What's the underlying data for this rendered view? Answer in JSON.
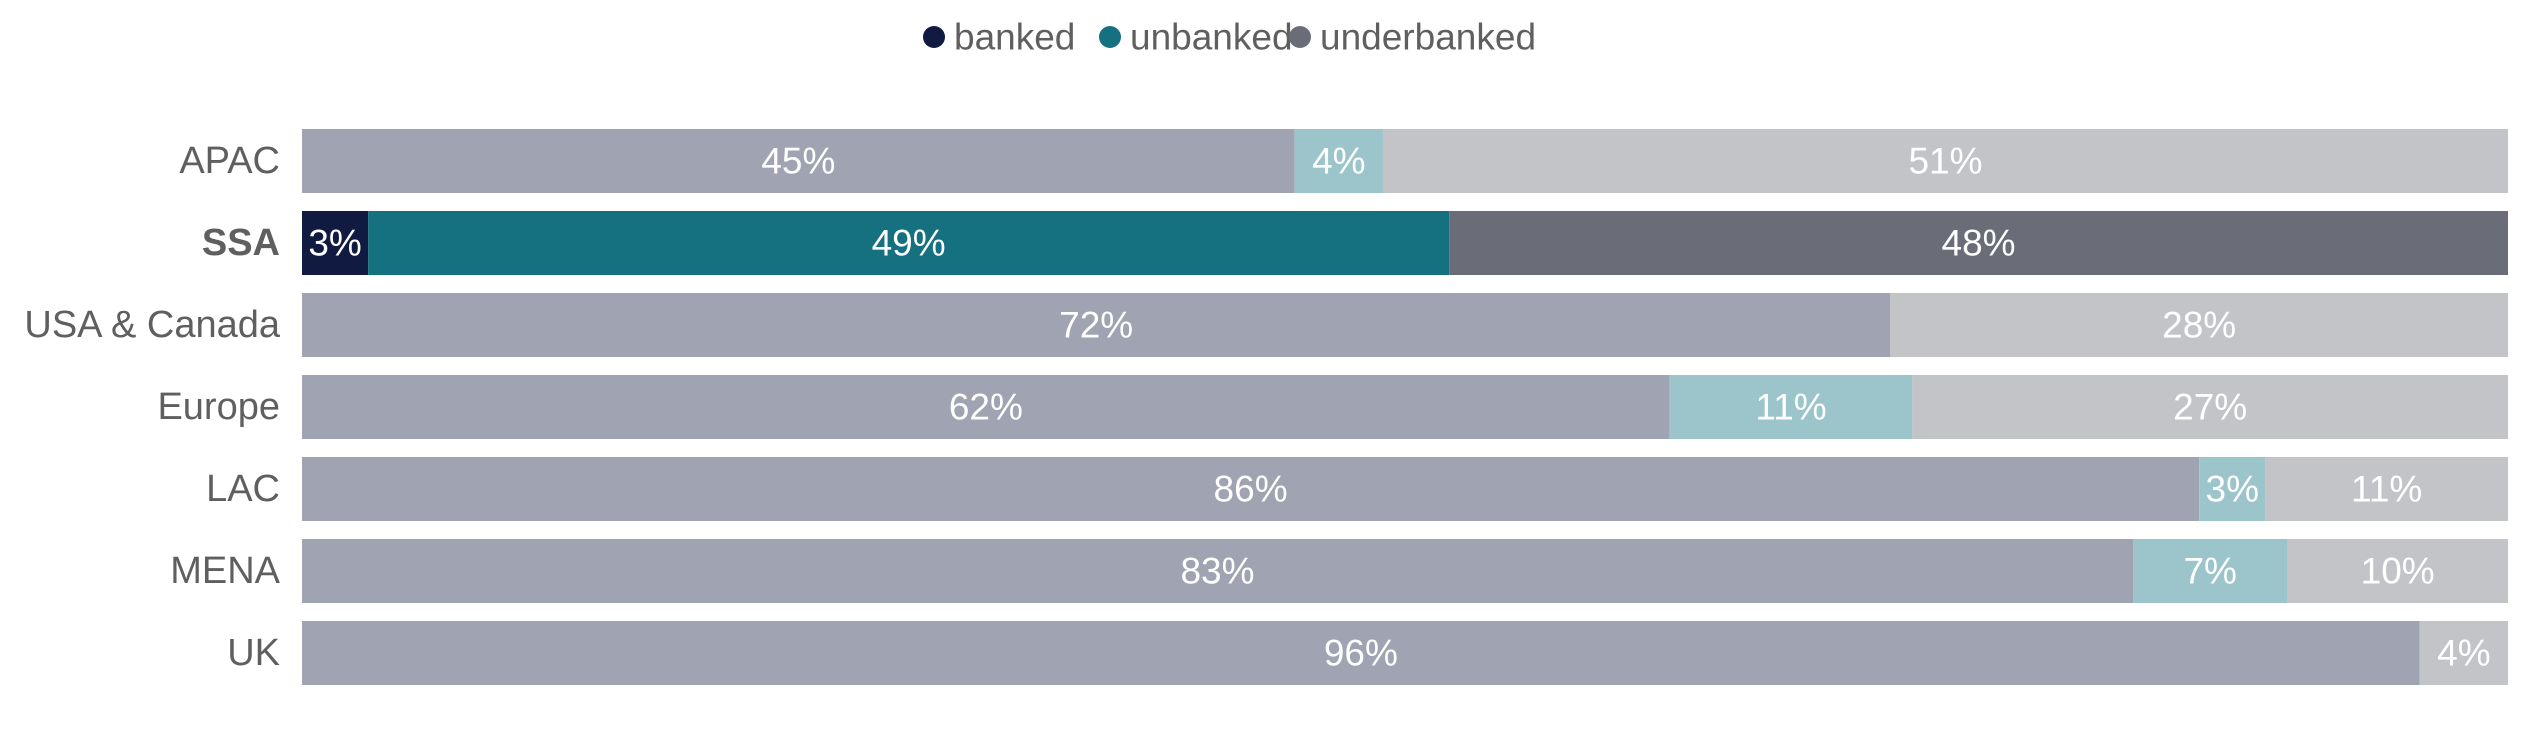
{
  "chart_data": {
    "type": "bar",
    "orientation": "horizontal",
    "stacked": true,
    "normalized_percent": true,
    "legend_position": "top-center",
    "grid": false,
    "xlim": [
      0,
      100
    ],
    "categories": [
      "APAC",
      "SSA",
      "USA & Canada",
      "Europe",
      "LAC",
      "MENA",
      "UK"
    ],
    "highlighted_category": "SSA",
    "series": [
      {
        "name": "banked",
        "values": [
          45,
          3,
          72,
          62,
          86,
          83,
          96
        ]
      },
      {
        "name": "unbanked",
        "values": [
          4,
          49,
          0,
          11,
          3,
          7,
          0
        ]
      },
      {
        "name": "underbanked",
        "values": [
          51,
          48,
          28,
          27,
          11,
          10,
          4
        ]
      }
    ],
    "labels": [
      [
        "45%",
        "4%",
        "51%"
      ],
      [
        "3%",
        "49%",
        "48%"
      ],
      [
        "72%",
        "",
        "28%"
      ],
      [
        "62%",
        "11%",
        "27%"
      ],
      [
        "86%",
        "3%",
        "11%"
      ],
      [
        "83%",
        "7%",
        "10%"
      ],
      [
        "96%",
        "",
        "4%"
      ]
    ],
    "colors": {
      "legend": [
        "#111a40",
        "#15707f",
        "#6a6d78"
      ],
      "highlight": [
        "#111a40",
        "#15707f",
        "#6a6d78"
      ],
      "muted": [
        "#a0a3b1",
        "#9bc5cb",
        "#c3c4c8"
      ],
      "label_text": "#ffffff",
      "category_text": "#5f5f5f"
    }
  }
}
